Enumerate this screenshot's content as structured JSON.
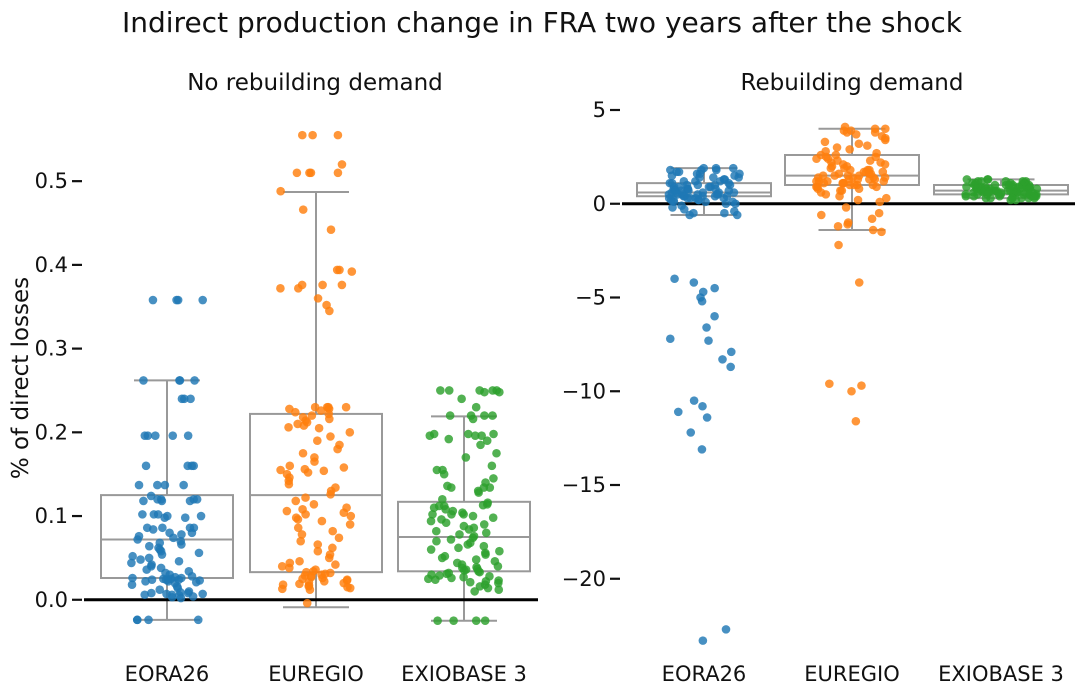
{
  "chart_data": {
    "type": "box-strip",
    "title": "Indirect production change in FRA two years after the shock",
    "ylabel": "% of direct losses",
    "categories": [
      "EORA26",
      "EUREGIO",
      "EXIOBASE 3"
    ],
    "colors": {
      "EORA26": "#1f77b4",
      "EUREGIO": "#ff7f0e",
      "EXIOBASE 3": "#2ca02c",
      "box": "#999999",
      "zero_line": "#000000"
    },
    "panels": [
      {
        "title": "No rebuilding demand",
        "ylim": [
          -0.06,
          0.585
        ],
        "yticks": [
          "0.0",
          "0.1",
          "0.2",
          "0.3",
          "0.4",
          "0.5"
        ],
        "series": [
          {
            "name": "EORA26",
            "box": {
              "whisker_low": -0.024,
              "q1": 0.026,
              "median": 0.072,
              "q3": 0.125,
              "whisker_high": 0.262
            },
            "points": [
              0.358,
              0.358,
              0.358,
              0.358,
              0.262,
              0.262,
              0.262,
              0.262,
              0.24,
              0.24,
              0.24,
              0.196,
              0.196,
              0.196,
              0.196,
              0.196,
              0.16,
              0.16,
              0.16,
              0.16,
              0.137,
              0.137,
              0.137,
              0.137,
              0.124,
              0.12,
              0.12,
              0.12,
              0.12,
              0.118,
              0.118,
              0.118,
              0.102,
              0.102,
              0.102,
              0.1,
              0.1,
              0.098,
              0.098,
              0.086,
              0.086,
              0.086,
              0.086,
              0.084,
              0.08,
              0.08,
              0.078,
              0.076,
              0.074,
              0.072,
              0.07,
              0.068,
              0.066,
              0.064,
              0.062,
              0.06,
              0.058,
              0.056,
              0.054,
              0.052,
              0.05,
              0.048,
              0.046,
              0.044,
              0.042,
              0.04,
              0.038,
              0.036,
              0.034,
              0.032,
              0.03,
              0.028,
              0.027,
              0.026,
              0.026,
              0.025,
              0.025,
              0.024,
              0.024,
              0.024,
              0.024,
              0.023,
              0.022,
              0.022,
              0.021,
              0.02,
              0.018,
              0.016,
              0.014,
              0.012,
              0.01,
              0.009,
              0.008,
              0.008,
              0.007,
              0.007,
              0.006,
              0.006,
              0.005,
              0.004,
              0.003,
              0.002,
              -0.024,
              -0.024,
              -0.024,
              -0.024
            ]
          },
          {
            "name": "EUREGIO",
            "box": {
              "whisker_low": -0.009,
              "q1": 0.033,
              "median": 0.125,
              "q3": 0.222,
              "whisker_high": 0.487
            },
            "points": [
              0.555,
              0.555,
              0.555,
              0.52,
              0.51,
              0.51,
              0.51,
              0.51,
              0.488,
              0.466,
              0.442,
              0.394,
              0.394,
              0.392,
              0.376,
              0.376,
              0.376,
              0.372,
              0.372,
              0.36,
              0.352,
              0.345,
              0.23,
              0.23,
              0.23,
              0.23,
              0.228,
              0.228,
              0.226,
              0.224,
              0.222,
              0.22,
              0.218,
              0.216,
              0.214,
              0.212,
              0.21,
              0.208,
              0.206,
              0.205,
              0.2,
              0.195,
              0.19,
              0.185,
              0.18,
              0.175,
              0.17,
              0.165,
              0.16,
              0.158,
              0.156,
              0.155,
              0.154,
              0.152,
              0.15,
              0.146,
              0.142,
              0.138,
              0.134,
              0.13,
              0.126,
              0.122,
              0.118,
              0.114,
              0.11,
              0.108,
              0.106,
              0.104,
              0.102,
              0.1,
              0.098,
              0.096,
              0.094,
              0.09,
              0.086,
              0.082,
              0.078,
              0.074,
              0.07,
              0.066,
              0.062,
              0.058,
              0.054,
              0.05,
              0.046,
              0.044,
              0.042,
              0.04,
              0.038,
              0.036,
              0.034,
              0.033,
              0.032,
              0.031,
              0.03,
              0.029,
              0.028,
              0.027,
              0.026,
              0.025,
              0.024,
              0.023,
              0.022,
              0.021,
              0.02,
              0.019,
              0.018,
              0.017,
              0.016,
              0.015,
              0.014,
              0.013,
              0.012,
              -0.004
            ]
          },
          {
            "name": "EXIOBASE 3",
            "box": {
              "whisker_low": -0.025,
              "q1": 0.034,
              "median": 0.075,
              "q3": 0.117,
              "whisker_high": 0.219
            },
            "points": [
              0.25,
              0.25,
              0.25,
              0.25,
              0.25,
              0.248,
              0.248,
              0.24,
              0.23,
              0.22,
              0.22,
              0.22,
              0.22,
              0.216,
              0.198,
              0.198,
              0.198,
              0.196,
              0.196,
              0.196,
              0.192,
              0.19,
              0.185,
              0.175,
              0.17,
              0.16,
              0.155,
              0.155,
              0.15,
              0.145,
              0.14,
              0.136,
              0.134,
              0.134,
              0.134,
              0.13,
              0.128,
              0.12,
              0.116,
              0.114,
              0.113,
              0.112,
              0.112,
              0.11,
              0.108,
              0.106,
              0.104,
              0.102,
              0.102,
              0.102,
              0.1,
              0.098,
              0.096,
              0.094,
              0.092,
              0.09,
              0.088,
              0.086,
              0.084,
              0.082,
              0.08,
              0.078,
              0.076,
              0.074,
              0.072,
              0.07,
              0.068,
              0.066,
              0.064,
              0.062,
              0.06,
              0.058,
              0.056,
              0.054,
              0.052,
              0.05,
              0.048,
              0.046,
              0.044,
              0.042,
              0.04,
              0.039,
              0.038,
              0.037,
              0.036,
              0.035,
              0.034,
              0.033,
              0.032,
              0.031,
              0.03,
              0.029,
              0.028,
              0.027,
              0.026,
              0.025,
              0.024,
              0.023,
              0.022,
              0.021,
              0.02,
              0.018,
              0.016,
              0.014,
              0.012,
              0.01,
              -0.025,
              -0.025,
              -0.025,
              -0.025
            ]
          }
        ]
      },
      {
        "title": "Rebuilding demand",
        "ylim": [
          -23.8,
          5.8
        ],
        "yticks": [
          "5",
          "0",
          "−5",
          "−10",
          "−15",
          "−20"
        ],
        "series": [
          {
            "name": "EORA26",
            "box": {
              "whisker_low": -0.6,
              "q1": 0.4,
              "median": 0.6,
              "q3": 1.1,
              "whisker_high": 1.9
            },
            "points": [
              1.9,
              1.9,
              1.9,
              1.8,
              1.8,
              1.8,
              1.7,
              1.7,
              1.6,
              1.6,
              1.6,
              1.5,
              1.5,
              1.4,
              1.4,
              1.4,
              1.3,
              1.3,
              1.2,
              1.2,
              1.2,
              1.1,
              1.1,
              1.1,
              1.0,
              1.0,
              1.0,
              1.0,
              0.9,
              0.9,
              0.9,
              0.9,
              0.8,
              0.8,
              0.8,
              0.8,
              0.7,
              0.7,
              0.7,
              0.7,
              0.7,
              0.6,
              0.6,
              0.6,
              0.6,
              0.6,
              0.5,
              0.5,
              0.5,
              0.5,
              0.5,
              0.5,
              0.4,
              0.4,
              0.4,
              0.4,
              0.4,
              0.3,
              0.3,
              0.3,
              0.3,
              0.3,
              0.2,
              0.2,
              0.2,
              0.2,
              0.1,
              0.1,
              0.1,
              0.0,
              0.0,
              -0.1,
              -0.2,
              -0.3,
              -0.4,
              -0.5,
              -0.5,
              -0.6,
              -0.6,
              -4.0,
              -4.2,
              -4.5,
              -4.7,
              -5.0,
              -5.2,
              -6.0,
              -6.6,
              -7.2,
              -7.3,
              -7.9,
              -8.3,
              -8.7,
              -10.5,
              -10.8,
              -11.1,
              -11.4,
              -12.2,
              -13.1,
              -22.7,
              -23.3
            ]
          },
          {
            "name": "EUREGIO",
            "box": {
              "whisker_low": -1.4,
              "q1": 1.0,
              "median": 1.5,
              "q3": 2.6,
              "whisker_high": 4.0
            },
            "points": [
              4.1,
              4.0,
              4.0,
              3.9,
              3.9,
              3.8,
              3.8,
              3.7,
              3.6,
              3.5,
              3.4,
              3.3,
              3.2,
              3.1,
              3.0,
              2.9,
              2.8,
              2.7,
              2.6,
              2.6,
              2.5,
              2.5,
              2.4,
              2.4,
              2.3,
              2.3,
              2.2,
              2.2,
              2.1,
              2.1,
              2.0,
              2.0,
              1.9,
              1.9,
              1.8,
              1.8,
              1.8,
              1.7,
              1.7,
              1.7,
              1.6,
              1.6,
              1.6,
              1.5,
              1.5,
              1.5,
              1.5,
              1.4,
              1.4,
              1.4,
              1.4,
              1.3,
              1.3,
              1.3,
              1.3,
              1.2,
              1.2,
              1.2,
              1.2,
              1.1,
              1.1,
              1.1,
              1.1,
              1.0,
              1.0,
              1.0,
              1.0,
              0.9,
              0.9,
              0.9,
              0.8,
              0.8,
              0.7,
              0.7,
              0.6,
              0.5,
              0.4,
              0.3,
              0.2,
              0.1,
              -0.2,
              -0.5,
              -0.6,
              -0.8,
              -1.0,
              -1.1,
              -1.2,
              -1.4,
              -1.5,
              -2.2,
              -4.2,
              -9.6,
              -9.7,
              -10.0,
              -11.6
            ]
          },
          {
            "name": "EXIOBASE 3",
            "box": {
              "whisker_low": 0.3,
              "q1": 0.5,
              "median": 0.7,
              "q3": 1.0,
              "whisker_high": 1.3
            },
            "points": [
              1.3,
              1.3,
              1.3,
              1.2,
              1.2,
              1.2,
              1.2,
              1.2,
              1.1,
              1.1,
              1.1,
              1.1,
              1.1,
              1.1,
              1.0,
              1.0,
              1.0,
              1.0,
              1.0,
              1.0,
              1.0,
              0.9,
              0.9,
              0.9,
              0.9,
              0.9,
              0.9,
              0.9,
              0.9,
              0.8,
              0.8,
              0.8,
              0.8,
              0.8,
              0.8,
              0.8,
              0.8,
              0.8,
              0.7,
              0.7,
              0.7,
              0.7,
              0.7,
              0.7,
              0.7,
              0.7,
              0.7,
              0.7,
              0.6,
              0.6,
              0.6,
              0.6,
              0.6,
              0.6,
              0.6,
              0.6,
              0.6,
              0.5,
              0.5,
              0.5,
              0.5,
              0.5,
              0.5,
              0.5,
              0.5,
              0.5,
              0.4,
              0.4,
              0.4,
              0.4,
              0.4,
              0.4,
              0.4,
              0.3,
              0.3,
              0.3,
              0.3,
              0.3,
              0.3,
              0.3,
              0.2,
              0.2
            ]
          }
        ]
      }
    ]
  }
}
